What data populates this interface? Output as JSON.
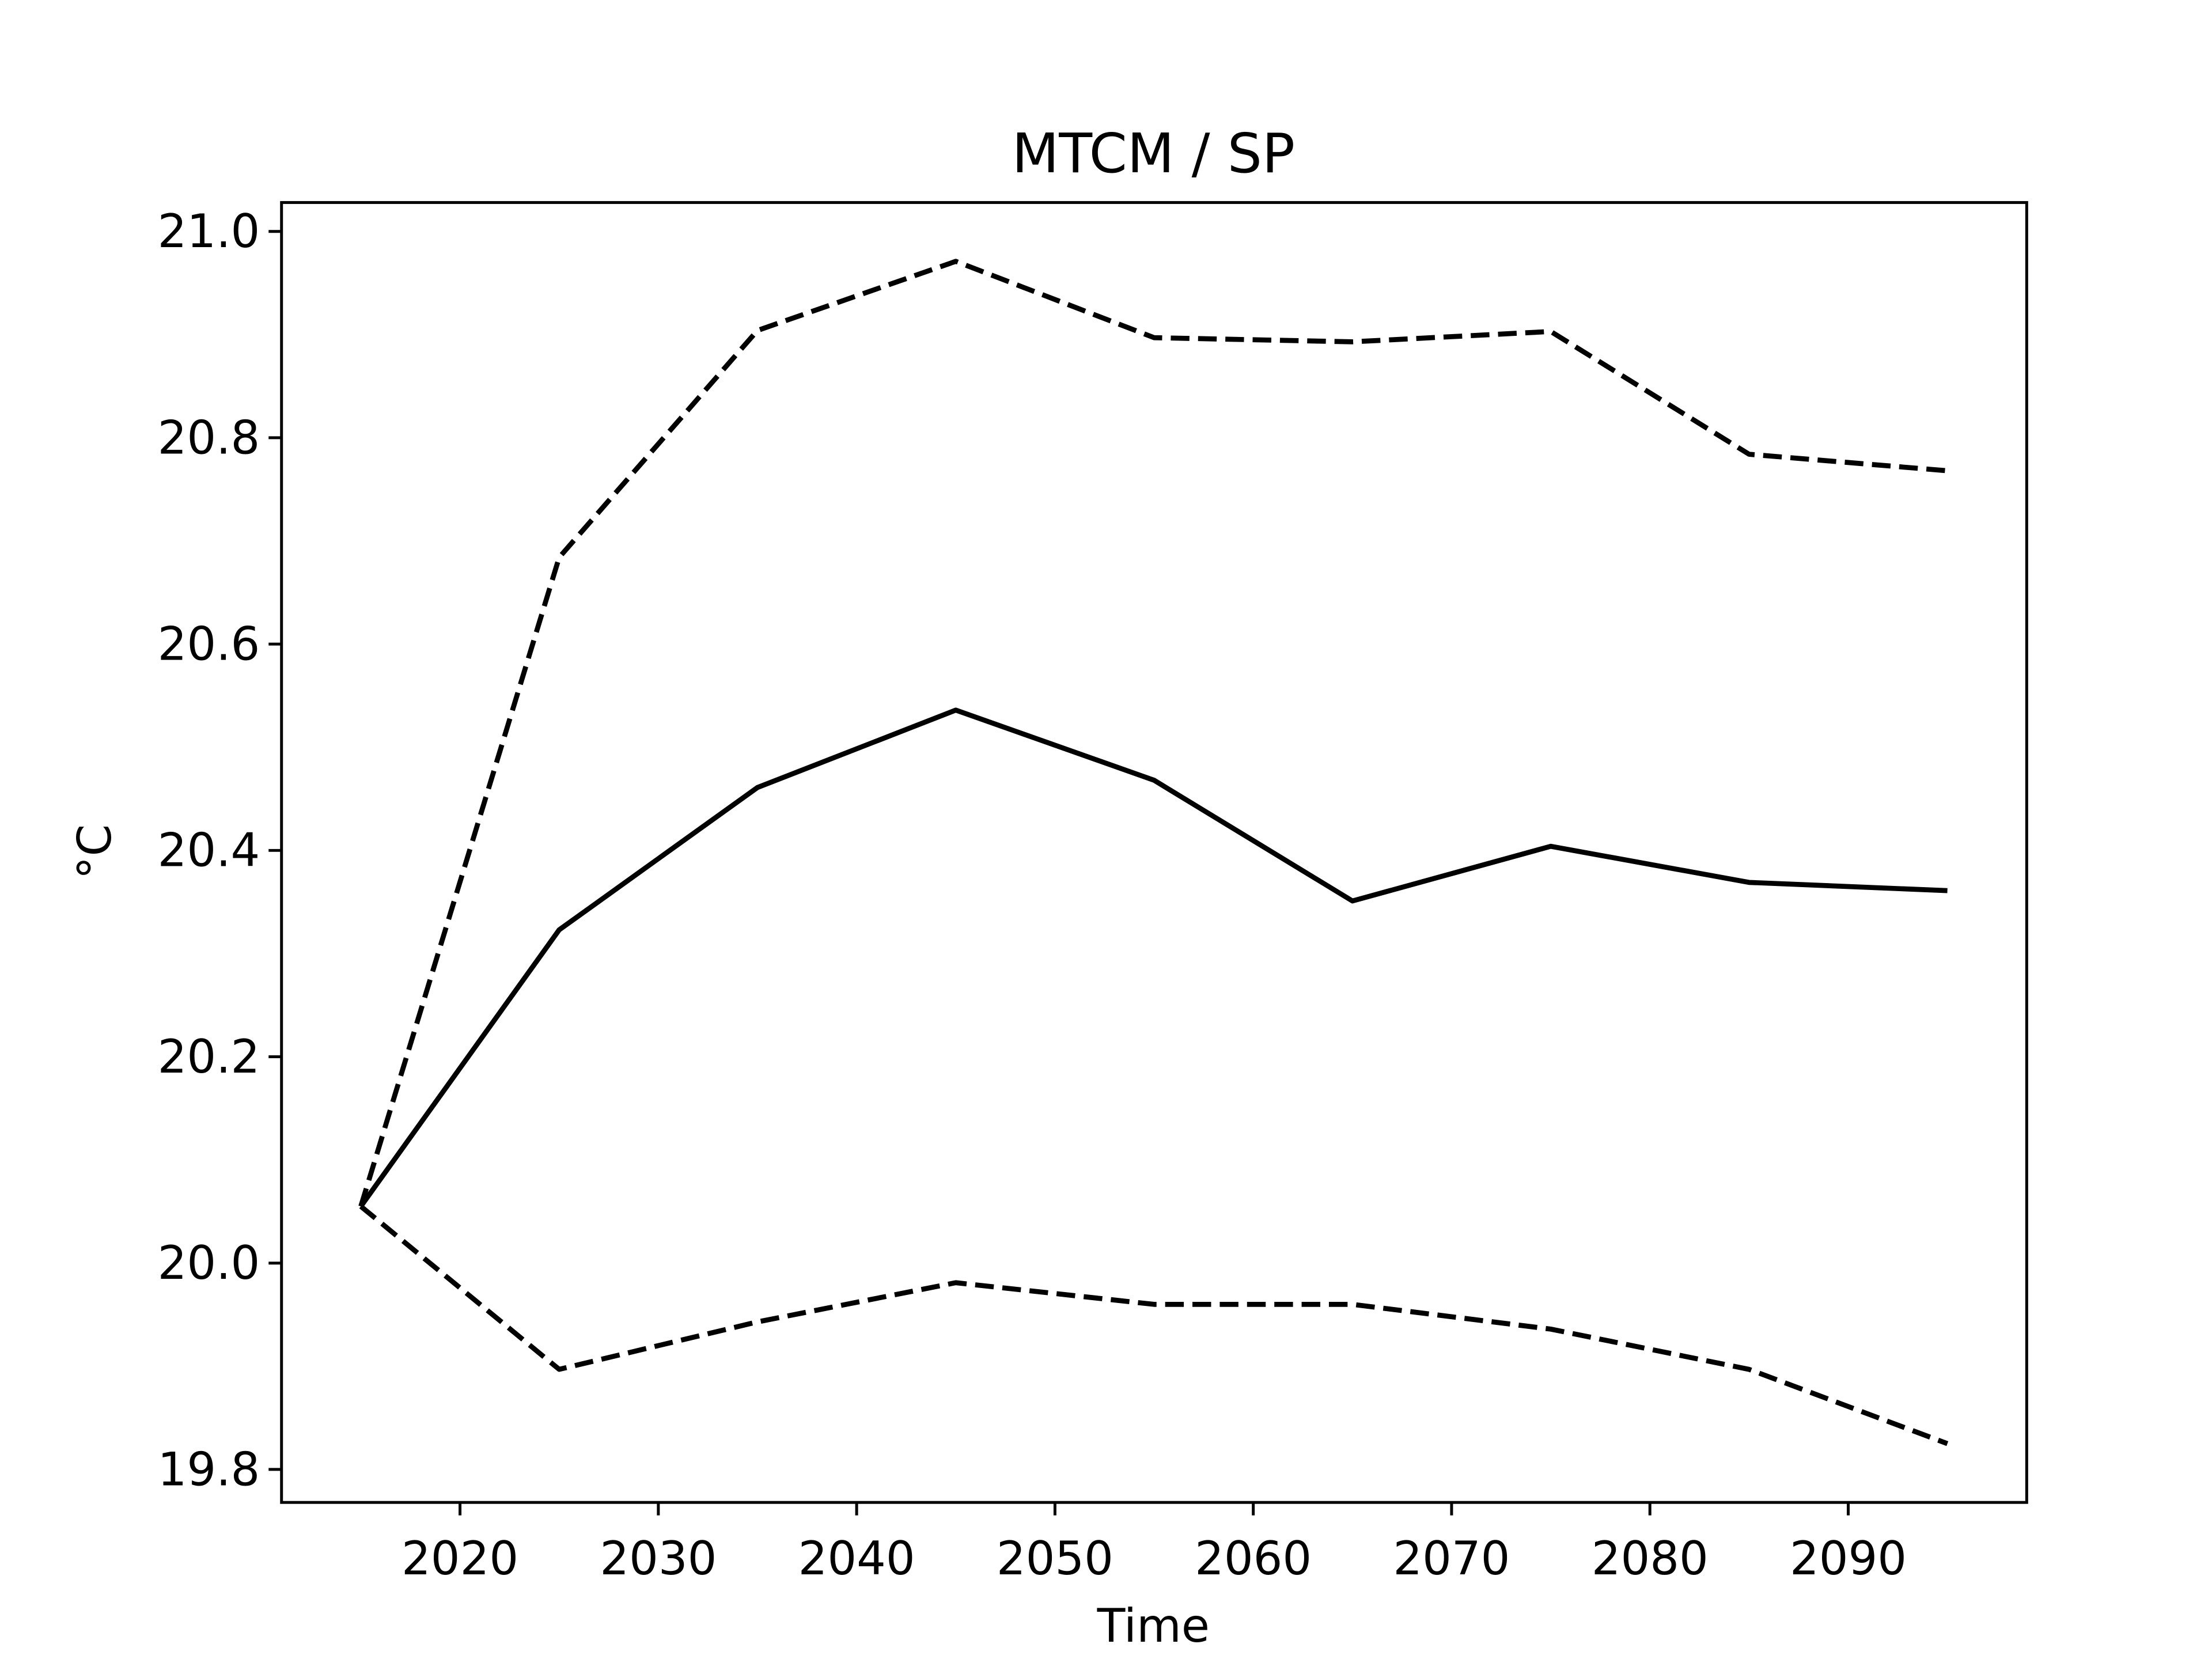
{
  "chart_data": {
    "type": "line",
    "title": "MTCM / SP",
    "xlabel": "Time",
    "ylabel": "°C",
    "x": [
      2015,
      2025,
      2035,
      2045,
      2055,
      2065,
      2075,
      2085,
      2095
    ],
    "series": [
      {
        "color": "#000000",
        "dashed": false,
        "values": [
          20.055,
          20.323,
          20.461,
          20.536,
          20.468,
          20.351,
          20.404,
          20.369,
          20.361
        ]
      },
      {
        "color": "#000000",
        "dashed": true,
        "values": [
          20.055,
          20.684,
          20.904,
          20.971,
          20.897,
          20.893,
          20.903,
          20.784,
          20.768
        ]
      },
      {
        "color": "#000000",
        "dashed": true,
        "values": [
          20.055,
          19.897,
          19.943,
          19.981,
          19.96,
          19.96,
          19.936,
          19.897,
          19.825
        ]
      }
    ],
    "xlim": [
      2011,
      2099
    ],
    "xticks": [
      2020,
      2030,
      2040,
      2050,
      2060,
      2070,
      2080,
      2090
    ],
    "ylim": [
      19.768,
      21.028
    ],
    "yticks": [
      19.8,
      {
        "value": 20.0,
        "label": "20.0"
      },
      20.2,
      20.4,
      20.6,
      20.8,
      {
        "value": 21.0,
        "label": "21.0"
      }
    ],
    "grid": false
  }
}
